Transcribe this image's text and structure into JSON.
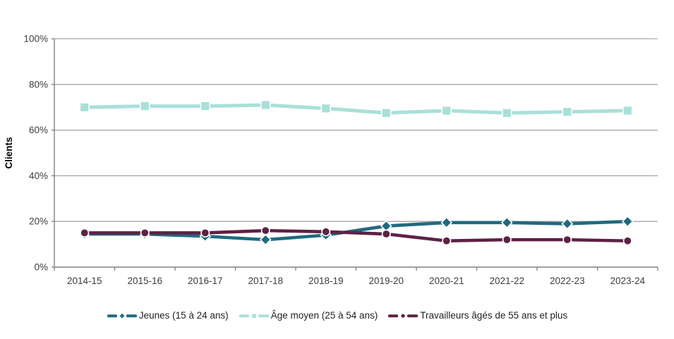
{
  "chart": {
    "ylabel": "Clients",
    "colors": {
      "background": "#ffffff",
      "grid": "#a6a6a6",
      "axis": "#808080",
      "tick_text": "#3d3d3d",
      "legend_text": "#1f1f1f",
      "axis_title_text": "#000000"
    }
  },
  "chart_data": {
    "type": "line",
    "title": "",
    "xlabel": "",
    "ylabel": "Clients",
    "ylim": [
      0,
      100
    ],
    "yticks": [
      0,
      20,
      40,
      60,
      80,
      100
    ],
    "ytick_labels": [
      "0%",
      "20%",
      "40%",
      "60%",
      "80%",
      "100%"
    ],
    "grid": true,
    "legend_position": "bottom",
    "categories": [
      "2014-15",
      "2015-16",
      "2016-17",
      "2017-18",
      "2018-19",
      "2019-20",
      "2020-21",
      "2021-22",
      "2022-23",
      "2023-24"
    ],
    "series": [
      {
        "name": "Jeunes (15 à 24 ans)",
        "color": "#1f6a80",
        "marker": "diamond",
        "values": [
          14.5,
          14.5,
          13.5,
          12,
          14,
          18,
          19.5,
          19.5,
          19,
          20
        ]
      },
      {
        "name": "Âge moyen (25 à 54 ans)",
        "color": "#a9e0d9",
        "marker": "square",
        "values": [
          70,
          70.5,
          70.5,
          71,
          69.5,
          67.5,
          68.5,
          67.5,
          68,
          68.5
        ]
      },
      {
        "name": "Travailleurs âgés de 55 ans et plus",
        "color": "#5e2144",
        "marker": "circle",
        "values": [
          15,
          15,
          15,
          16,
          15.5,
          14.5,
          11.5,
          12,
          12,
          11.5
        ]
      }
    ]
  }
}
